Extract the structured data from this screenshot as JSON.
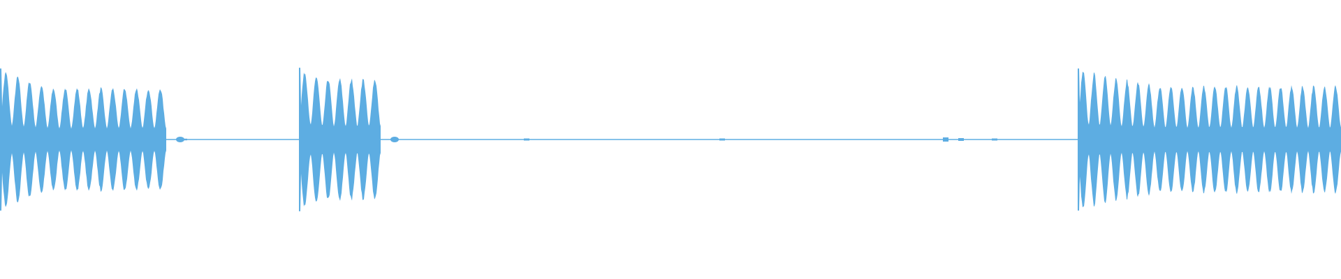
{
  "chart_data": {
    "type": "waveform",
    "title": "",
    "xlabel": "",
    "ylabel": "",
    "axes_visible": false,
    "grid": false,
    "ylim": [
      -1,
      1
    ],
    "color": "#5dade2",
    "bursts": [
      {
        "name": "",
        "pulses": 14,
        "peak_amplitude": 0.97,
        "sustain_amplitude": 0.72,
        "silence_floor": 0.01
      },
      {
        "name": "",
        "pulses": 7,
        "peak_amplitude": 0.98,
        "sustain_amplitude": 0.85,
        "silence_floor": 0.01
      },
      {
        "name": "",
        "pulses": 24,
        "peak_amplitude": 0.97,
        "sustain_amplitude": 0.75,
        "silence_floor": 0.01
      }
    ],
    "silence_amplitude": 0.01
  }
}
